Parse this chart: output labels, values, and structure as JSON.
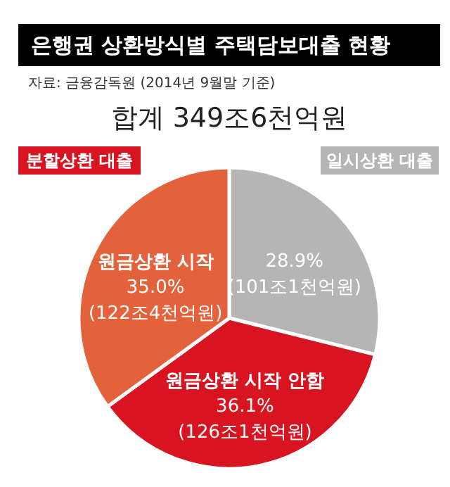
{
  "chart_data": {
    "type": "pie",
    "title": "은행권 상환방식별 주택담보대출 현황",
    "subtitle": "자료: 금융감독원 (2014년 9월말 기준)",
    "categories": [
      null,
      "원금상환 시작 안함",
      "원금상환 시작"
    ],
    "values": [
      28.9,
      36.1,
      35.0
    ],
    "colors": [
      "#b5b5b5",
      "#d7141f",
      "#e4623b"
    ],
    "value_labels": [
      "28.9%\n(101조1천억원)",
      "36.1%\n(126조1천억원)",
      "35.0%\n(122조4천억원)"
    ],
    "annotations": [
      "합계 349조6천억원",
      "분할상환 대출",
      "일시상환 대출"
    ]
  }
}
